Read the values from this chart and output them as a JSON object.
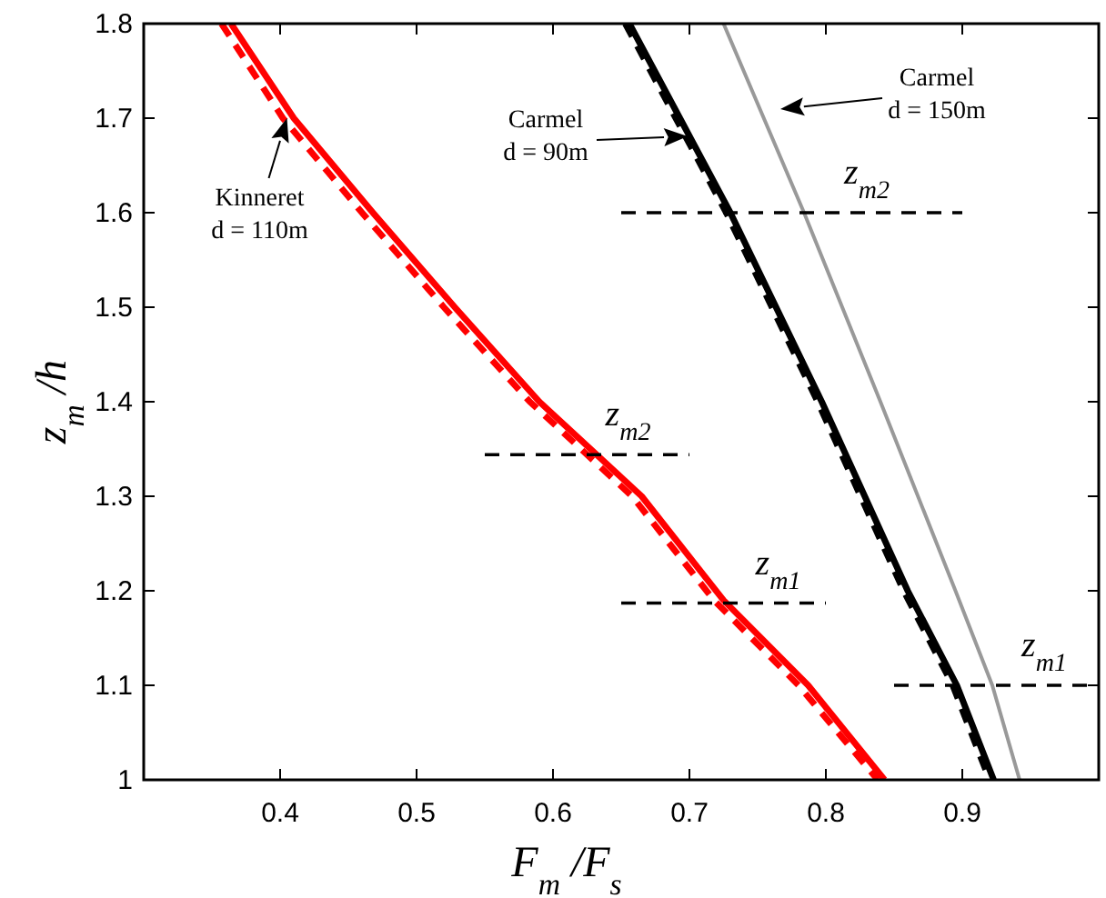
{
  "chart_data": {
    "type": "line",
    "xlabel": "F$_{m}$/F$_{s}$",
    "ylabel": "z$_{m}$/h",
    "xlim": [
      0.3,
      1.0
    ],
    "ylim": [
      1,
      1.8
    ],
    "xticks": [
      0.4,
      0.5,
      0.6,
      0.7,
      0.8,
      0.9
    ],
    "yticks": [
      1,
      1.1,
      1.2,
      1.3,
      1.4,
      1.5,
      1.6,
      1.7,
      1.8
    ],
    "grid": false,
    "series": [
      {
        "color": "#ff0000",
        "line_style": "solid",
        "x": [
          0.364,
          0.41,
          0.468,
          0.528,
          0.59,
          0.665,
          0.725,
          0.787,
          0.843
        ],
        "values": [
          1.8,
          1.7,
          1.6,
          1.5,
          1.4,
          1.3,
          1.19,
          1.1,
          1.0
        ]
      },
      {
        "color": "#ff0000",
        "line_style": "dashed",
        "x": [
          0.357,
          0.402,
          0.46,
          0.52,
          0.583,
          0.658,
          0.718,
          0.78,
          0.838
        ],
        "values": [
          1.8,
          1.7,
          1.6,
          1.5,
          1.4,
          1.3,
          1.19,
          1.1,
          1.0
        ]
      },
      {
        "color": "#000000",
        "line_style": "solid",
        "x": [
          0.656,
          0.693,
          0.73,
          0.797,
          0.86,
          0.896,
          0.923
        ],
        "values": [
          1.8,
          1.7,
          1.6,
          1.4,
          1.2,
          1.1,
          1.0
        ]
      },
      {
        "color": "#000000",
        "line_style": "dashed",
        "x": [
          0.653,
          0.69,
          0.727,
          0.794,
          0.857,
          0.893,
          0.92
        ],
        "values": [
          1.8,
          1.7,
          1.6,
          1.4,
          1.2,
          1.1,
          1.0
        ]
      },
      {
        "color": "#999999",
        "line_style": "solid",
        "x": [
          0.725,
          0.784,
          0.84,
          0.895,
          0.922,
          0.942
        ],
        "values": [
          1.8,
          1.6,
          1.4,
          1.2,
          1.1,
          1.0
        ]
      },
      {
        "color": "#000000",
        "line_style": "dashed",
        "x": [
          0.65,
          0.9
        ],
        "values": [
          1.6,
          1.6
        ]
      },
      {
        "color": "#000000",
        "line_style": "dashed",
        "x": [
          0.55,
          0.7
        ],
        "values": [
          1.344,
          1.344
        ]
      },
      {
        "color": "#000000",
        "line_style": "dashed",
        "x": [
          0.65,
          0.8
        ],
        "values": [
          1.187,
          1.187
        ]
      },
      {
        "color": "#000000",
        "line_style": "dashed",
        "x": [
          0.85,
          1.0
        ],
        "values": [
          1.1,
          1.1
        ]
      }
    ],
    "annotations": [
      {
        "text": "Kinneret\nd = 110m",
        "x": 0.405,
        "y": 1.7
      },
      "Carmel\nd = 90m",
      "Carmel\nd = 150m",
      {
        "text": "z$_{m2}$",
        "x": 0.83,
        "y": 1.6
      },
      {
        "text": "z$_{m2}$",
        "x": 0.655,
        "y": 1.344
      },
      {
        "text": "z$_{m1}$",
        "x": 0.765,
        "y": 1.187
      },
      {
        "text": "z$_{m1}$",
        "x": 0.96,
        "y": 1.1
      }
    ]
  }
}
